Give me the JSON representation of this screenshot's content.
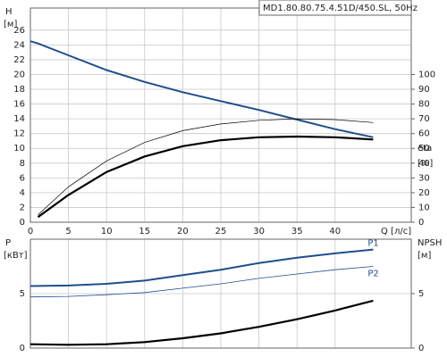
{
  "chart_data": [
    {
      "type": "line",
      "title": "MD1.80.80.75.4.51D/450.SL, 50Hz",
      "ylabel": "H",
      "yunit": "[м]",
      "y2label": "eta",
      "y2unit": "[%]",
      "xlabel": "Q [л/с]",
      "x": [
        0,
        1,
        5,
        10,
        15,
        20,
        25,
        30,
        35,
        40,
        45
      ],
      "xlim": [
        0,
        50
      ],
      "xticks": [
        0,
        5,
        10,
        15,
        20,
        25,
        30,
        35,
        40
      ],
      "ylim": [
        0,
        29
      ],
      "yticks": [
        0,
        2,
        4,
        6,
        8,
        10,
        12,
        14,
        16,
        18,
        20,
        22,
        24,
        26
      ],
      "y2lim": [
        0,
        145
      ],
      "y2ticks": [
        0,
        10,
        20,
        30,
        40,
        50,
        60,
        70,
        80,
        90,
        100
      ],
      "grid": true,
      "series": [
        {
          "color": "#1f4e8c",
          "line_width": 2,
          "values": [
            24.5,
            24.2,
            22.6,
            20.6,
            19.0,
            17.6,
            16.4,
            15.2,
            13.9,
            12.6,
            11.5
          ]
        },
        {
          "color": "#000000",
          "line_width": 2.2,
          "axis": "y2",
          "values": [
            null,
            3.5,
            18.5,
            34,
            44.5,
            51.5,
            55.5,
            57.5,
            58,
            57.5,
            56
          ]
        },
        {
          "color": "#000000",
          "line_width": 0.7,
          "axis": "y2",
          "values": [
            null,
            5,
            24,
            41.5,
            54,
            62,
            66.5,
            69,
            70,
            69.5,
            67.5
          ]
        }
      ]
    },
    {
      "type": "line",
      "ylabel": "P",
      "yunit": "[кВт]",
      "y2label": "NPSH",
      "y2unit": "[м]",
      "x": [
        0,
        5,
        10,
        15,
        20,
        25,
        30,
        35,
        40,
        45
      ],
      "xlim": [
        0,
        50
      ],
      "xticks": [
        0,
        5,
        10,
        15,
        20,
        25,
        30,
        35,
        40
      ],
      "ylim": [
        0,
        10
      ],
      "yticks": [
        0,
        5
      ],
      "y2lim": [
        0,
        10
      ],
      "y2ticks": [
        0,
        5
      ],
      "grid": true,
      "series": [
        {
          "name": "P1",
          "color": "#1f4e8c",
          "line_width": 2,
          "values": [
            5.7,
            5.75,
            5.9,
            6.2,
            6.7,
            7.2,
            7.8,
            8.3,
            8.7,
            9.05
          ]
        },
        {
          "name": "P2",
          "color": "#1f4e8c",
          "line_width": 0.8,
          "values": [
            4.7,
            4.75,
            4.9,
            5.1,
            5.5,
            5.9,
            6.4,
            6.8,
            7.2,
            7.5
          ]
        },
        {
          "color": "#000000",
          "line_width": 2.2,
          "axis": "y2",
          "values": [
            0.35,
            0.3,
            0.35,
            0.55,
            0.9,
            1.35,
            1.95,
            2.65,
            3.45,
            4.35
          ]
        }
      ]
    }
  ]
}
